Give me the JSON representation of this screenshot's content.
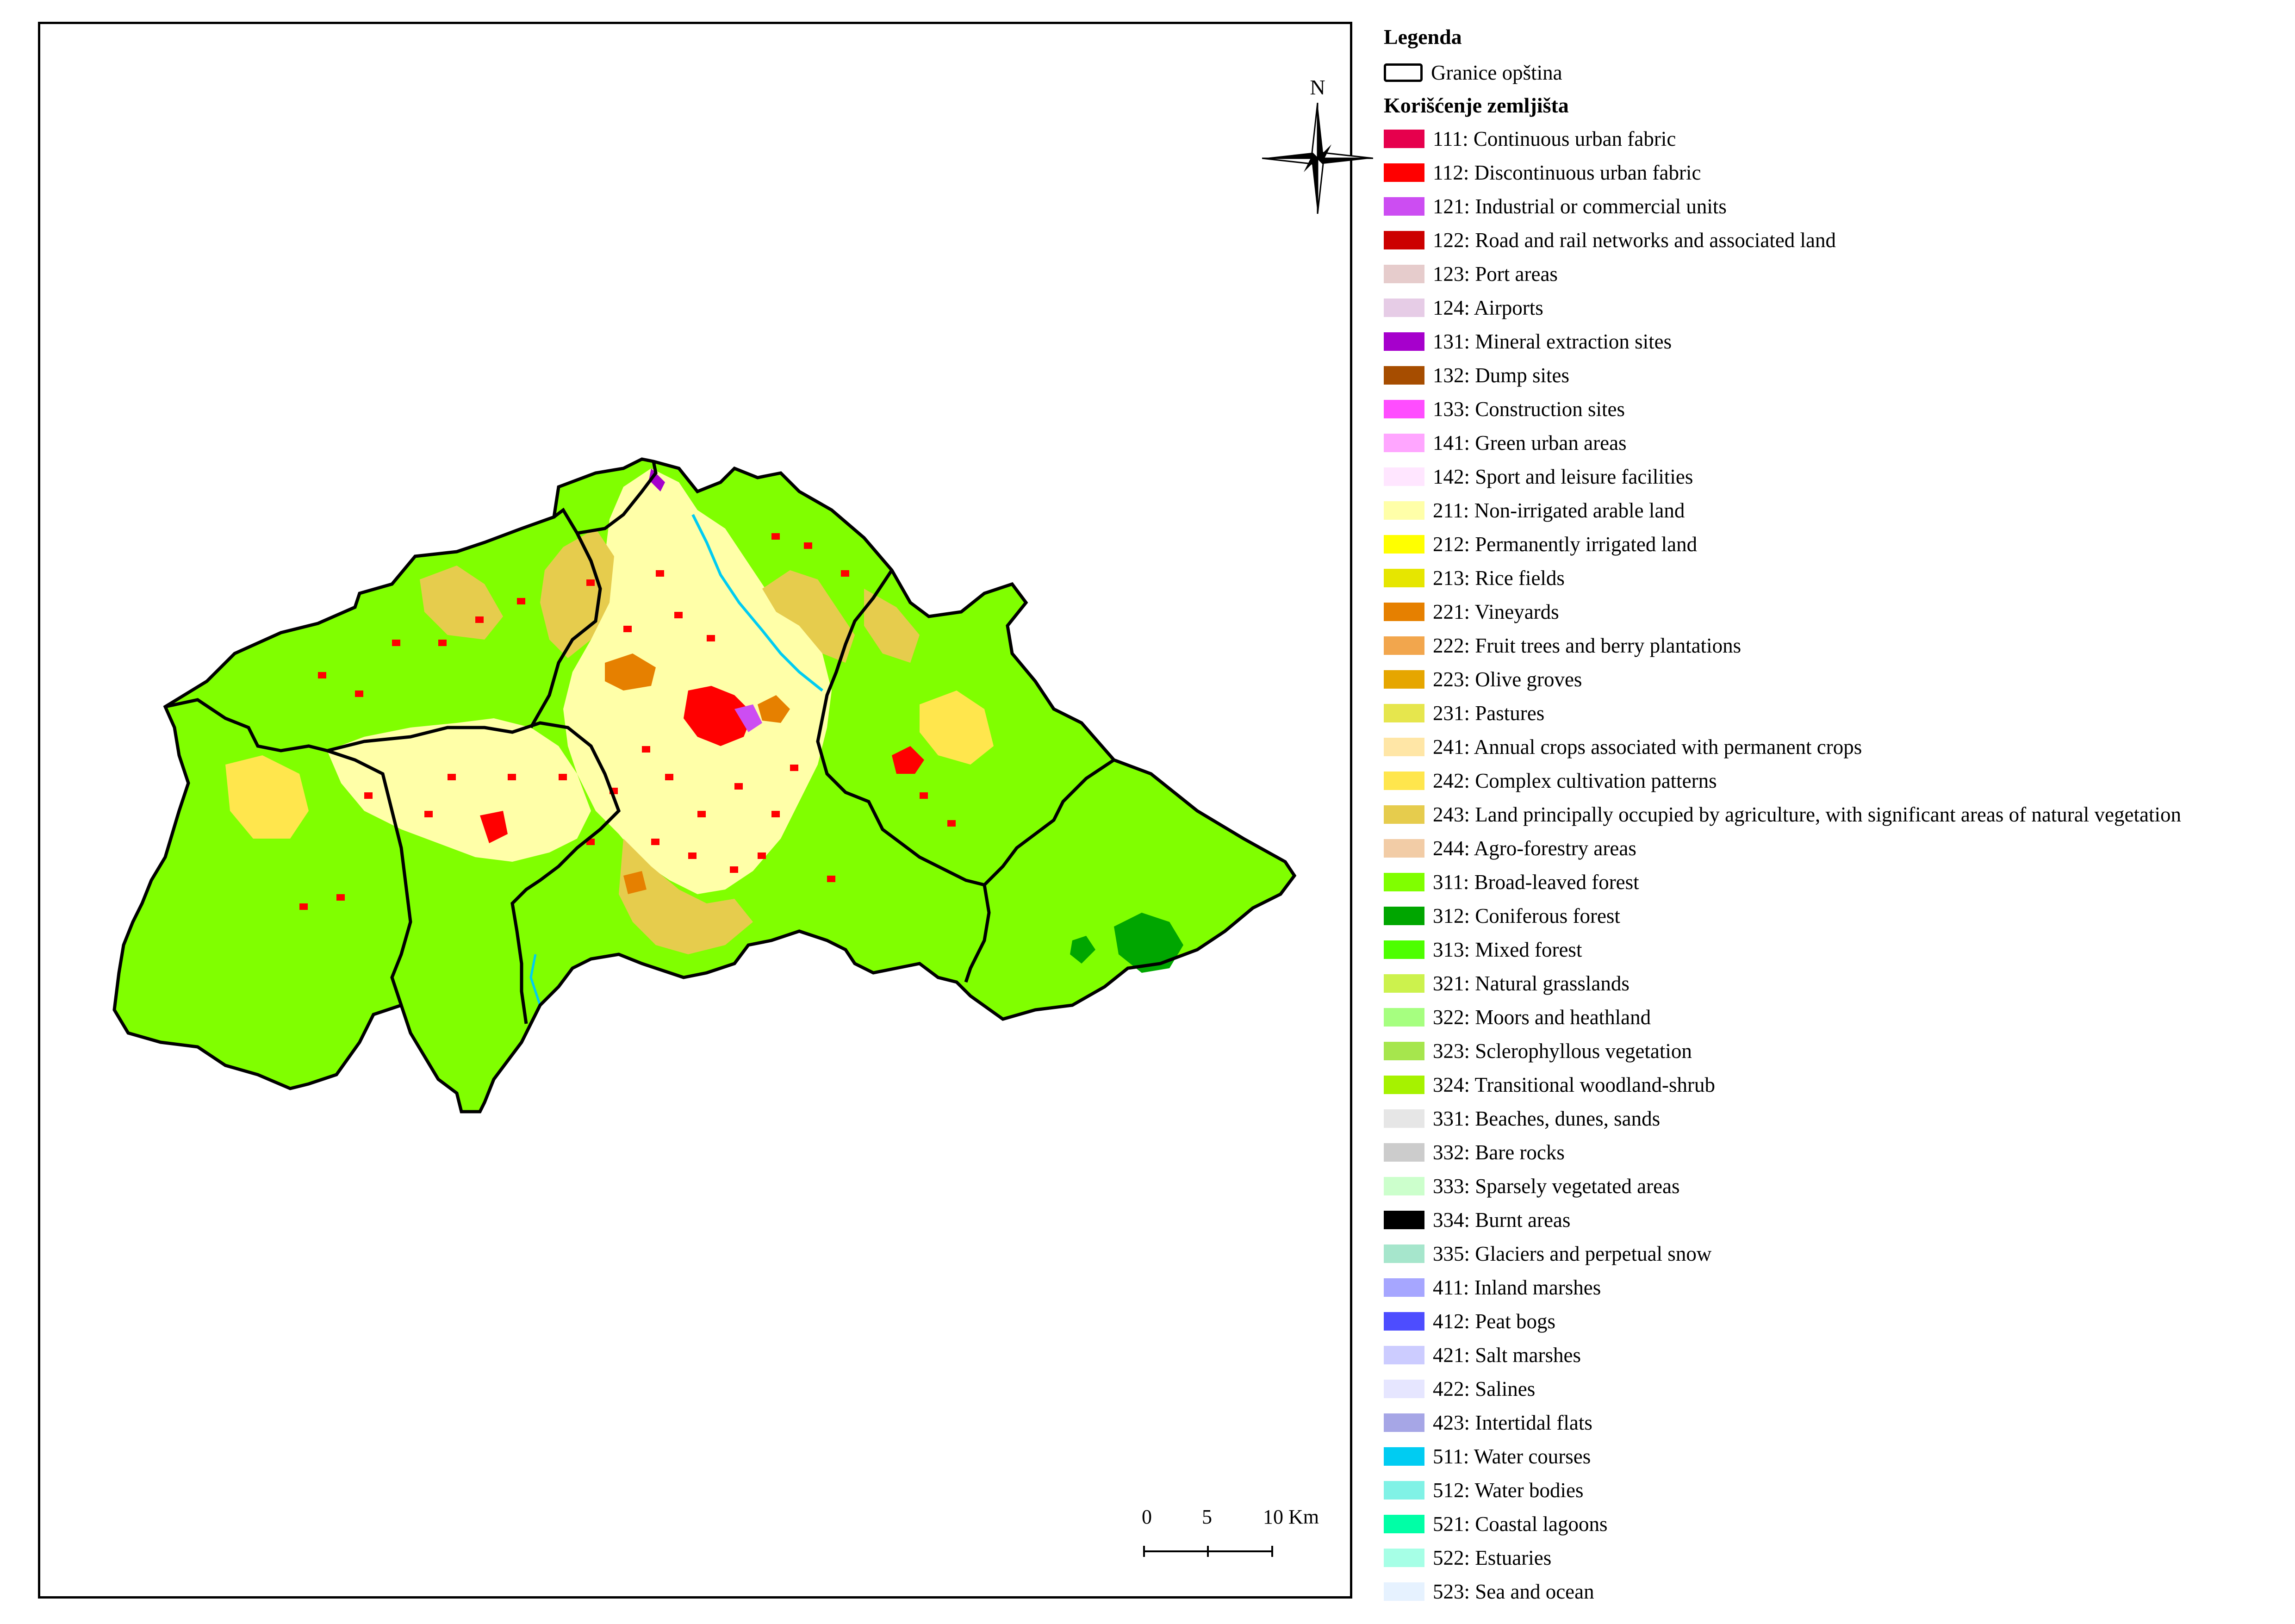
{
  "legend": {
    "title": "Legenda",
    "boundary_label": "Granice opština",
    "land_use_title": "Korišćenje zemljišta",
    "classes": [
      {
        "label": "111: Continuous urban fabric",
        "color": "#e6004d"
      },
      {
        "label": "112: Discontinuous urban fabric",
        "color": "#ff0000"
      },
      {
        "label": "121: Industrial or commercial units",
        "color": "#cc4df2"
      },
      {
        "label": "122: Road and rail networks and associated land",
        "color": "#cc0000"
      },
      {
        "label": "123: Port areas",
        "color": "#e6cccc"
      },
      {
        "label": "124: Airports",
        "color": "#e6cce6"
      },
      {
        "label": "131: Mineral extraction sites",
        "color": "#a600cc"
      },
      {
        "label": "132: Dump sites",
        "color": "#a64d00"
      },
      {
        "label": "133: Construction sites",
        "color": "#ff4dff"
      },
      {
        "label": "141: Green urban areas",
        "color": "#ffa6ff"
      },
      {
        "label": "142: Sport and leisure facilities",
        "color": "#ffe6ff"
      },
      {
        "label": "211: Non-irrigated arable land",
        "color": "#ffffa8"
      },
      {
        "label": "212: Permanently irrigated land",
        "color": "#ffff00"
      },
      {
        "label": "213: Rice fields",
        "color": "#e6e600"
      },
      {
        "label": "221: Vineyards",
        "color": "#e68000"
      },
      {
        "label": "222: Fruit trees and berry plantations",
        "color": "#f2a64d"
      },
      {
        "label": "223: Olive groves",
        "color": "#e6a600"
      },
      {
        "label": "231: Pastures",
        "color": "#e6e64d"
      },
      {
        "label": "241: Annual crops associated with permanent crops",
        "color": "#ffe6a6"
      },
      {
        "label": "242: Complex cultivation patterns",
        "color": "#ffe64d"
      },
      {
        "label": "243: Land principally occupied by agriculture, with significant areas of natural vegetation",
        "color": "#e6cc4d"
      },
      {
        "label": "244: Agro-forestry areas",
        "color": "#f2cca6"
      },
      {
        "label": "311: Broad-leaved forest",
        "color": "#80ff00"
      },
      {
        "label": "312: Coniferous forest",
        "color": "#00a600"
      },
      {
        "label": "313: Mixed forest",
        "color": "#4dff00"
      },
      {
        "label": "321: Natural grasslands",
        "color": "#ccf24d"
      },
      {
        "label": "322: Moors and heathland",
        "color": "#a6ff80"
      },
      {
        "label": "323: Sclerophyllous vegetation",
        "color": "#a6e64d"
      },
      {
        "label": "324: Transitional woodland-shrub",
        "color": "#a6f200"
      },
      {
        "label": "331: Beaches, dunes, sands",
        "color": "#e6e6e6"
      },
      {
        "label": "332: Bare rocks",
        "color": "#cccccc"
      },
      {
        "label": "333: Sparsely vegetated areas",
        "color": "#ccffcc"
      },
      {
        "label": "334: Burnt areas",
        "color": "#000000"
      },
      {
        "label": "335: Glaciers and perpetual snow",
        "color": "#a6e6cc"
      },
      {
        "label": "411: Inland marshes",
        "color": "#a6a6ff"
      },
      {
        "label": "412: Peat bogs",
        "color": "#4d4dff"
      },
      {
        "label": "421: Salt marshes",
        "color": "#ccccff"
      },
      {
        "label": "422: Salines",
        "color": "#e6e6ff"
      },
      {
        "label": "423: Intertidal flats",
        "color": "#a6a6e6"
      },
      {
        "label": "511: Water courses",
        "color": "#00ccf2"
      },
      {
        "label": "512: Water bodies",
        "color": "#80f2e6"
      },
      {
        "label": "521: Coastal lagoons",
        "color": "#00ffa6"
      },
      {
        "label": "522: Estuaries",
        "color": "#a6ffe6"
      },
      {
        "label": "523: Sea and ocean",
        "color": "#e6f2ff"
      }
    ]
  },
  "north_arrow": {
    "label": "N"
  },
  "scale_bar": {
    "ticks": [
      "0",
      "5",
      "10 Km"
    ]
  },
  "colors": {
    "forest": "#80ff00",
    "arable": "#ffffa8",
    "agri_natural": "#e6cc4d",
    "complex": "#ffe64d",
    "urban": "#ff0000",
    "vineyard": "#e68000",
    "coniferous": "#00a600",
    "water": "#00ccf2",
    "mineral": "#a600cc",
    "boundary": "#000000"
  }
}
